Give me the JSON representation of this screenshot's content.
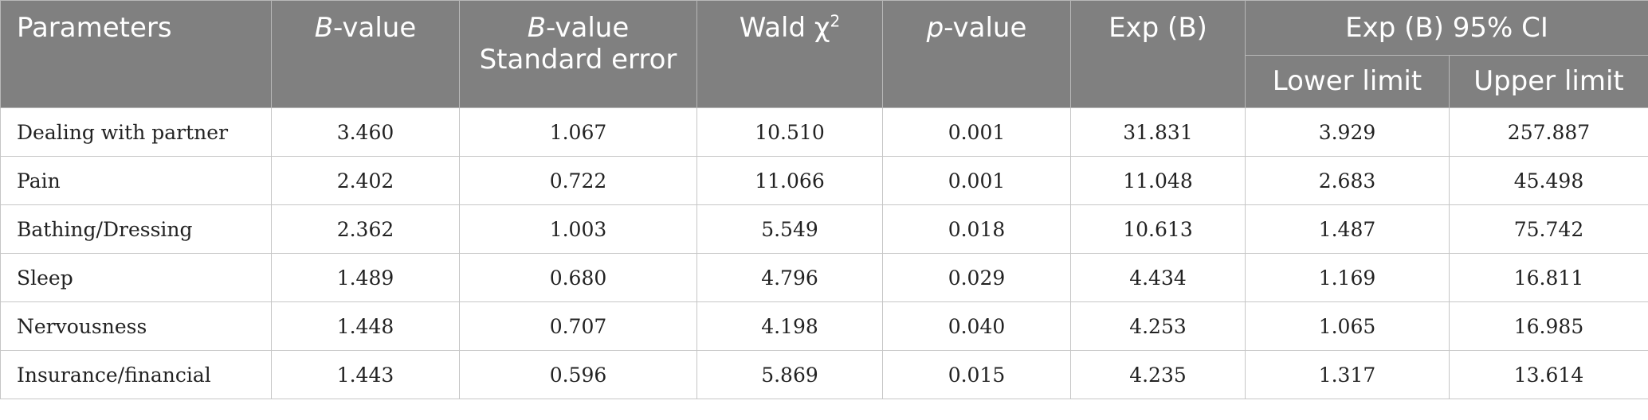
{
  "header": {
    "parameters": "Parameters",
    "b_value_italic": "B",
    "b_value_rest": "-value",
    "b_se_italic": "B",
    "b_se_rest": "-value",
    "b_se_line2": "Standard error",
    "wald_text": "Wald χ",
    "wald_sup": "2",
    "p_italic": "p",
    "p_rest": "-value",
    "exp_b": "Exp (B)",
    "exp_ci": "Exp (B) 95% CI",
    "lower": "Lower limit",
    "upper": "Upper limit"
  },
  "rows": [
    {
      "parameter": "Dealing with partner",
      "b": "3.460",
      "se": "1.067",
      "wald": "10.510",
      "p": "0.001",
      "exp": "31.831",
      "lower": "3.929",
      "upper": "257.887"
    },
    {
      "parameter": "Pain",
      "b": "2.402",
      "se": "0.722",
      "wald": "11.066",
      "p": "0.001",
      "exp": "11.048",
      "lower": "2.683",
      "upper": "45.498"
    },
    {
      "parameter": "Bathing/Dressing",
      "b": "2.362",
      "se": "1.003",
      "wald": "5.549",
      "p": "0.018",
      "exp": "10.613",
      "lower": "1.487",
      "upper": "75.742"
    },
    {
      "parameter": "Sleep",
      "b": "1.489",
      "se": "0.680",
      "wald": "4.796",
      "p": "0.029",
      "exp": "4.434",
      "lower": "1.169",
      "upper": "16.811"
    },
    {
      "parameter": "Nervousness",
      "b": "1.448",
      "se": "0.707",
      "wald": "4.198",
      "p": "0.040",
      "exp": "4.253",
      "lower": "1.065",
      "upper": "16.985"
    },
    {
      "parameter": "Insurance/financial",
      "b": "1.443",
      "se": "0.596",
      "wald": "5.869",
      "p": "0.015",
      "exp": "4.235",
      "lower": "1.317",
      "upper": "13.614"
    }
  ]
}
